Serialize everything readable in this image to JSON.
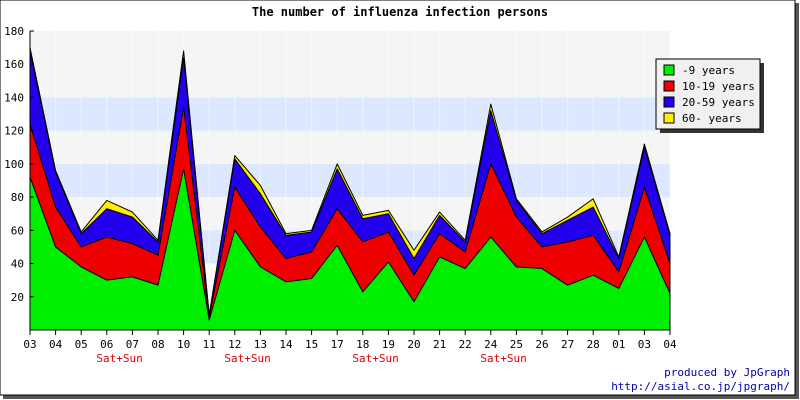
{
  "chart_data": {
    "type": "area",
    "stacked": true,
    "title": "The number of influenza infection persons",
    "xlabel": "",
    "ylabel": "",
    "ylim": [
      0,
      180
    ],
    "yticks": [
      20,
      40,
      60,
      80,
      100,
      120,
      140,
      160,
      180
    ],
    "categories": [
      "03",
      "04",
      "05",
      "06",
      "07",
      "08",
      "10",
      "11",
      "12",
      "13",
      "14",
      "15",
      "17",
      "18",
      "19",
      "20",
      "21",
      "22",
      "24",
      "25",
      "26",
      "27",
      "28",
      "01",
      "03",
      "04"
    ],
    "weekend_markers": [
      {
        "index": 3,
        "label": "Sat+Sun"
      },
      {
        "index": 8,
        "label": "Sat+Sun"
      },
      {
        "index": 13,
        "label": "Sat+Sun"
      },
      {
        "index": 18,
        "label": "Sat+Sun"
      }
    ],
    "grid": true,
    "legend_position": "top-right",
    "series": [
      {
        "name": "-9 years",
        "color": "#00ee00",
        "values": [
          92,
          50,
          38,
          30,
          32,
          27,
          97,
          6,
          60,
          38,
          29,
          31,
          51,
          23,
          41,
          17,
          44,
          37,
          56,
          38,
          37,
          27,
          33,
          25,
          56,
          22
        ]
      },
      {
        "name": "10-19 years",
        "color": "#ee0000",
        "values": [
          32,
          24,
          12,
          26,
          20,
          18,
          37,
          2,
          26,
          24,
          14,
          16,
          22,
          30,
          18,
          16,
          14,
          10,
          44,
          30,
          13,
          26,
          24,
          10,
          30,
          18
        ]
      },
      {
        "name": "20-59 years",
        "color": "#2200ee",
        "values": [
          44,
          21,
          8,
          17,
          16,
          8,
          30,
          1,
          17,
          20,
          14,
          12,
          24,
          14,
          11,
          10,
          11,
          6,
          32,
          10,
          8,
          13,
          17,
          8,
          24,
          17
        ]
      },
      {
        "name": "60- years",
        "color": "#ffee00",
        "values": [
          2,
          1,
          1,
          5,
          3,
          1,
          4,
          0,
          2,
          5,
          1,
          1,
          3,
          2,
          2,
          5,
          2,
          1,
          4,
          1,
          1,
          2,
          5,
          1,
          2,
          1
        ]
      }
    ],
    "background_bands": [
      "#f5f5f5",
      "#dde8ff"
    ]
  },
  "credits": {
    "line1": "produced by JpGraph",
    "line2": "http://asial.co.jp/jpgraph/"
  }
}
